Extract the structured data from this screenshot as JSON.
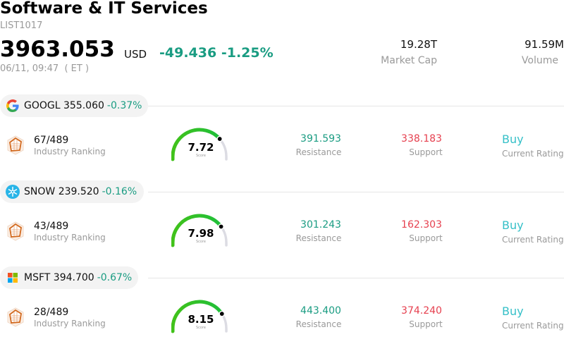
{
  "header": {
    "title": "Software & IT Services",
    "list_id": "LIST1017",
    "price": "3963.053",
    "currency": "USD",
    "change": "-49.436",
    "change_pct": "-1.25%",
    "timestamp": "06/11, 09:47  ( ET )",
    "market_cap_value": "19.28T",
    "market_cap_label": "Market Cap",
    "volume_value": "91.59M",
    "volume_label": "Volume"
  },
  "stocks": [
    {
      "symbol": "GOOGL",
      "price": "355.060",
      "change_pct": "-0.37%",
      "logo": "google-logo-icon",
      "ranking": "67/489",
      "ranking_label": "Industry Ranking",
      "score": "7.72",
      "score_label": "Score",
      "score_fraction": 0.772,
      "resistance": "391.593",
      "resistance_label": "Resistance",
      "support": "338.183",
      "support_label": "Support",
      "rating": "Buy",
      "rating_label": "Current Rating"
    },
    {
      "symbol": "SNOW",
      "price": "239.520",
      "change_pct": "-0.16%",
      "logo": "snowflake-logo-icon",
      "ranking": "43/489",
      "ranking_label": "Industry Ranking",
      "score": "7.98",
      "score_label": "Score",
      "score_fraction": 0.798,
      "resistance": "301.243",
      "resistance_label": "Resistance",
      "support": "162.303",
      "support_label": "Support",
      "rating": "Buy",
      "rating_label": "Current Rating"
    },
    {
      "symbol": "MSFT",
      "price": "394.700",
      "change_pct": "-0.67%",
      "logo": "microsoft-logo-icon",
      "ranking": "28/489",
      "ranking_label": "Industry Ranking",
      "score": "8.15",
      "score_label": "Score",
      "score_fraction": 0.815,
      "resistance": "443.400",
      "resistance_label": "Resistance",
      "support": "374.240",
      "support_label": "Support",
      "rating": "Buy",
      "rating_label": "Current Rating"
    }
  ],
  "colors": {
    "positive": "#1a9c82",
    "negative": "#e6404f",
    "rating": "#36c0c8",
    "gauge_track": "#dcdce3"
  }
}
